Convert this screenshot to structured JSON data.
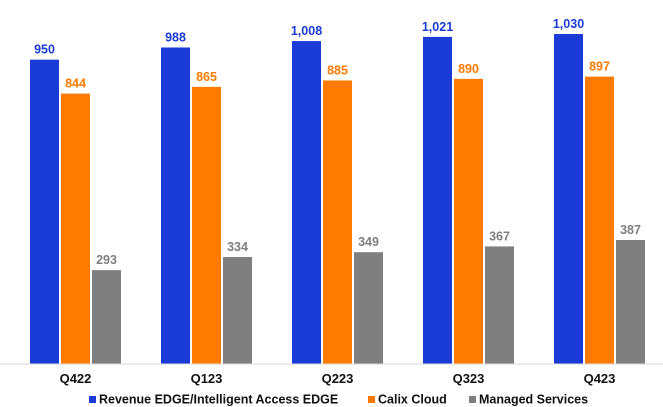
{
  "chart_data": {
    "type": "bar",
    "categories": [
      "Q422",
      "Q123",
      "Q223",
      "Q323",
      "Q423"
    ],
    "series": [
      {
        "name": "Revenue EDGE/Intelligent Access EDGE",
        "color": "#1a3bd6",
        "values": [
          950,
          988,
          1008,
          1021,
          1030
        ],
        "labels": [
          "950",
          "988",
          "1,008",
          "1,021",
          "1,030"
        ]
      },
      {
        "name": "Calix Cloud",
        "color": "#ff7a00",
        "values": [
          844,
          865,
          885,
          890,
          897
        ],
        "labels": [
          "844",
          "865",
          "885",
          "890",
          "897"
        ]
      },
      {
        "name": "Managed Services",
        "color": "#7f7f7f",
        "values": [
          293,
          334,
          349,
          367,
          387
        ],
        "labels": [
          "293",
          "334",
          "349",
          "367",
          "387"
        ]
      }
    ],
    "value_label_colors": [
      "#1a3bd6",
      "#ff7a00",
      "#7f7f7f"
    ],
    "ylim": [
      0,
      1080
    ],
    "grid": false,
    "legend_position": "bottom"
  }
}
